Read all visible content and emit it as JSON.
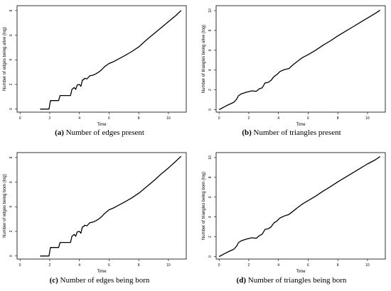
{
  "captions": [
    {
      "letter": "(a)",
      "text": " Number of edges present"
    },
    {
      "letter": "(b)",
      "text": " Number of triangles present"
    },
    {
      "letter": "(c)",
      "text": " Number of edges being born"
    },
    {
      "letter": "(d)",
      "text": " Number of triangles being born"
    }
  ],
  "chart_data": [
    {
      "type": "line",
      "xlabel": "Time",
      "ylabel": "Number of edges being alive (log)",
      "xlim": [
        -0.2,
        11.2
      ],
      "ylim": [
        -0.25,
        8.4
      ],
      "xticks": [
        0,
        2,
        4,
        6,
        8,
        10
      ],
      "yticks": [
        0,
        2,
        4,
        6,
        8
      ],
      "grid": false,
      "x": [
        1.35,
        1.95,
        2.05,
        2.6,
        2.7,
        3.4,
        3.5,
        3.65,
        3.75,
        3.85,
        4.0,
        4.1,
        4.2,
        4.3,
        4.35,
        4.5,
        4.7,
        4.9,
        5.1,
        5.3,
        5.5,
        5.7,
        6.0,
        6.3,
        6.6,
        7.0,
        7.5,
        8.0,
        8.5,
        9.0,
        9.5,
        10.0,
        10.5,
        10.85
      ],
      "y": [
        0.0,
        0.0,
        0.69,
        0.69,
        1.1,
        1.1,
        1.6,
        1.75,
        1.6,
        1.95,
        2.0,
        1.85,
        2.35,
        2.4,
        2.5,
        2.45,
        2.7,
        2.75,
        2.85,
        3.0,
        3.2,
        3.45,
        3.7,
        3.85,
        4.05,
        4.3,
        4.65,
        5.05,
        5.6,
        6.1,
        6.6,
        7.1,
        7.6,
        8.0
      ]
    },
    {
      "type": "line",
      "xlabel": "Time",
      "ylabel": "Number of triangles being alive (log)",
      "xlim": [
        -0.2,
        11.2
      ],
      "ylim": [
        -0.25,
        10.5
      ],
      "xticks": [
        0,
        2,
        4,
        6,
        8,
        10
      ],
      "yticks": [
        0,
        2,
        4,
        6,
        8,
        10
      ],
      "grid": false,
      "x": [
        0.0,
        0.5,
        1.0,
        1.2,
        1.3,
        1.5,
        1.8,
        2.2,
        2.5,
        2.7,
        2.9,
        3.1,
        3.3,
        3.5,
        3.7,
        3.9,
        4.1,
        4.4,
        4.7,
        5.0,
        5.3,
        5.6,
        6.0,
        6.5,
        7.0,
        7.5,
        8.0,
        8.5,
        9.0,
        9.5,
        10.0,
        10.5,
        10.85
      ],
      "y": [
        0.0,
        0.4,
        0.75,
        1.1,
        1.4,
        1.6,
        1.75,
        1.9,
        1.85,
        2.1,
        2.2,
        2.7,
        2.75,
        2.95,
        3.35,
        3.55,
        3.85,
        4.05,
        4.15,
        4.55,
        4.9,
        5.25,
        5.55,
        6.0,
        6.5,
        6.95,
        7.45,
        7.9,
        8.35,
        8.8,
        9.25,
        9.7,
        10.05
      ]
    },
    {
      "type": "line",
      "xlabel": "Time",
      "ylabel": "Number of edges being born (log)",
      "xlim": [
        -0.2,
        11.2
      ],
      "ylim": [
        -0.25,
        8.4
      ],
      "xticks": [
        0,
        2,
        4,
        6,
        8,
        10
      ],
      "yticks": [
        0,
        2,
        4,
        6,
        8
      ],
      "grid": false,
      "x": [
        1.35,
        1.95,
        2.05,
        2.6,
        2.7,
        3.4,
        3.5,
        3.65,
        3.75,
        3.85,
        4.0,
        4.1,
        4.2,
        4.3,
        4.35,
        4.5,
        4.7,
        4.9,
        5.1,
        5.3,
        5.5,
        5.7,
        6.0,
        6.3,
        6.6,
        7.0,
        7.5,
        8.0,
        8.5,
        9.0,
        9.5,
        10.0,
        10.5,
        10.85
      ],
      "y": [
        0.0,
        0.0,
        0.69,
        0.69,
        1.1,
        1.1,
        1.6,
        1.75,
        1.6,
        1.95,
        2.0,
        1.85,
        2.35,
        2.4,
        2.5,
        2.45,
        2.7,
        2.75,
        2.85,
        3.0,
        3.2,
        3.45,
        3.75,
        3.9,
        4.1,
        4.35,
        4.7,
        5.1,
        5.6,
        6.1,
        6.65,
        7.15,
        7.7,
        8.1
      ]
    },
    {
      "type": "line",
      "xlabel": "Time",
      "ylabel": "Number of triangles being born (log)",
      "xlim": [
        -0.2,
        11.2
      ],
      "ylim": [
        -0.25,
        10.5
      ],
      "xticks": [
        0,
        2,
        4,
        6,
        8,
        10
      ],
      "yticks": [
        0,
        2,
        4,
        6,
        8,
        10
      ],
      "grid": false,
      "x": [
        0.0,
        0.5,
        1.0,
        1.2,
        1.3,
        1.5,
        1.8,
        2.2,
        2.5,
        2.7,
        2.9,
        3.1,
        3.3,
        3.5,
        3.7,
        3.9,
        4.1,
        4.4,
        4.7,
        5.0,
        5.3,
        5.6,
        6.0,
        6.5,
        7.0,
        7.5,
        8.0,
        8.5,
        9.0,
        9.5,
        10.0,
        10.5,
        10.85
      ],
      "y": [
        0.0,
        0.4,
        0.75,
        1.1,
        1.4,
        1.6,
        1.75,
        1.9,
        1.85,
        2.1,
        2.25,
        2.75,
        2.8,
        3.0,
        3.4,
        3.6,
        3.9,
        4.1,
        4.25,
        4.6,
        4.95,
        5.3,
        5.65,
        6.1,
        6.6,
        7.05,
        7.55,
        8.0,
        8.45,
        8.9,
        9.35,
        9.75,
        10.1
      ]
    }
  ]
}
